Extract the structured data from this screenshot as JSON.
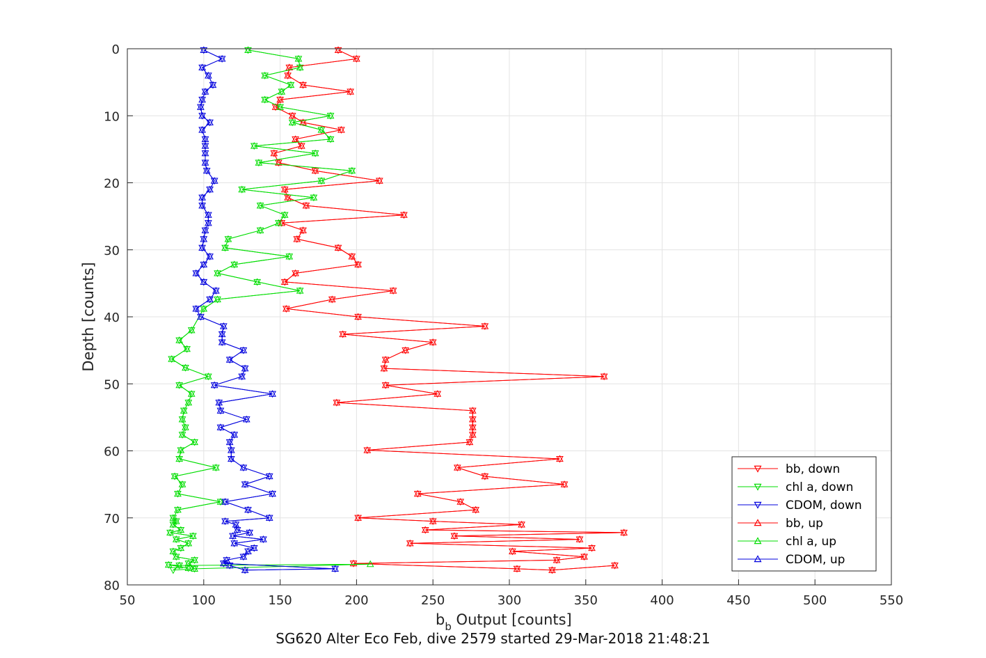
{
  "chart_data": {
    "type": "scatter",
    "xlabel": {
      "base": "b",
      "subscript": "b",
      "rest": " Output [counts]"
    },
    "ylabel": "Depth [counts]",
    "footer": "SG620 Alter Eco Feb, dive 2579 started 29-Mar-2018 21:48:21",
    "xlim": [
      50,
      550
    ],
    "ylim": [
      0,
      80
    ],
    "y_reversed": true,
    "grid": true,
    "xticks": [
      50,
      100,
      150,
      200,
      250,
      300,
      350,
      400,
      450,
      500,
      550
    ],
    "yticks": [
      0,
      10,
      20,
      30,
      40,
      50,
      60,
      70,
      80
    ],
    "legend_position": "lower-right",
    "series": [
      {
        "name": "bb, down",
        "color": "#ff0000",
        "marker": "triangle-down",
        "x": [
          188,
          200,
          156,
          155,
          165,
          196,
          150,
          147,
          158,
          165,
          190,
          160,
          164,
          146,
          149,
          173,
          215,
          153,
          155,
          167,
          231,
          151,
          165,
          161,
          188,
          197,
          201,
          160,
          153,
          224,
          184,
          154,
          201,
          284,
          191,
          250,
          232,
          219,
          218,
          362,
          219,
          253,
          187,
          276,
          276,
          276,
          276,
          274,
          207,
          333,
          266,
          284,
          336,
          240,
          268,
          278,
          201,
          250,
          308,
          245,
          375,
          264,
          346,
          235,
          354,
          302,
          349,
          331,
          198,
          305,
          328,
          369
        ],
        "y": [
          0.2,
          1.5,
          2.8,
          4.0,
          5.4,
          6.4,
          7.6,
          8.7,
          10.0,
          11.0,
          12.1,
          13.5,
          14.5,
          15.6,
          17.0,
          18.2,
          19.7,
          21.0,
          22.2,
          23.4,
          24.8,
          26.0,
          27.1,
          28.4,
          29.7,
          31.0,
          32.2,
          33.5,
          34.8,
          36.1,
          37.4,
          38.8,
          40.0,
          41.4,
          42.6,
          43.8,
          45.0,
          46.4,
          47.7,
          48.9,
          50.2,
          51.5,
          52.8,
          54.0,
          55.3,
          56.5,
          57.6,
          58.7,
          59.9,
          61.2,
          62.5,
          63.8,
          65.0,
          66.4,
          67.6,
          68.8,
          70.0,
          70.5,
          71.0,
          71.8,
          72.2,
          72.7,
          73.2,
          73.8,
          74.5,
          75.0,
          75.8,
          76.3,
          76.8,
          77.6,
          77.8,
          77.1
        ]
      },
      {
        "name": "chl a, down",
        "color": "#00dd00",
        "marker": "triangle-down",
        "x": [
          129,
          162,
          163,
          140,
          157,
          151,
          140,
          150,
          183,
          158,
          177,
          183,
          133,
          173,
          136,
          197,
          177,
          125,
          172,
          137,
          153,
          149,
          137,
          116,
          114,
          156,
          120,
          109,
          135,
          163,
          109,
          100,
          92,
          84,
          89,
          79,
          88,
          103,
          84,
          92,
          90,
          87,
          86,
          88,
          86,
          94,
          85,
          84,
          108,
          81,
          86,
          83,
          111,
          83,
          80,
          82,
          80,
          85,
          78,
          93,
          82,
          90,
          85,
          80,
          82,
          94,
          90,
          94,
          80,
          84,
          77,
          90
        ],
        "y": [
          0.2,
          1.5,
          2.8,
          4.0,
          5.4,
          6.4,
          7.6,
          8.7,
          10.0,
          11.0,
          12.1,
          13.5,
          14.5,
          15.6,
          17.0,
          18.2,
          19.7,
          21.0,
          22.2,
          23.4,
          24.8,
          26.0,
          27.1,
          28.4,
          29.7,
          31.0,
          32.2,
          33.5,
          34.8,
          36.1,
          37.4,
          38.8,
          42.0,
          43.5,
          44.8,
          46.3,
          47.6,
          48.9,
          50.2,
          51.5,
          52.8,
          54.0,
          55.3,
          56.5,
          57.6,
          58.7,
          59.9,
          61.2,
          62.5,
          63.8,
          65.0,
          66.4,
          67.6,
          68.8,
          70.0,
          70.5,
          71.0,
          71.8,
          72.2,
          72.7,
          73.2,
          73.8,
          74.5,
          75.0,
          75.8,
          76.3,
          76.8,
          77.6,
          77.8,
          77.1,
          77.0,
          77.5
        ]
      },
      {
        "name": "CDOM, down",
        "color": "#0000dd",
        "marker": "triangle-down",
        "x": [
          100,
          112,
          99,
          103,
          106,
          101,
          99,
          98,
          99,
          104,
          99,
          101,
          101,
          101,
          101,
          102,
          107,
          104,
          99,
          99,
          103,
          103,
          101,
          100,
          99,
          104,
          100,
          95,
          100,
          108,
          104,
          95,
          98,
          113,
          112,
          112,
          126,
          117,
          127,
          125,
          107,
          145,
          110,
          111,
          128,
          111,
          120,
          117,
          118,
          118,
          126,
          143,
          127,
          145,
          114,
          129,
          143,
          114,
          121,
          122,
          130,
          119,
          139,
          120,
          133,
          129,
          126,
          115,
          113,
          186,
          127,
          117
        ],
        "y": [
          0.2,
          1.5,
          2.8,
          4.0,
          5.4,
          6.4,
          7.6,
          8.7,
          10.0,
          11.0,
          12.1,
          13.5,
          14.5,
          15.6,
          17.0,
          18.2,
          19.7,
          21.0,
          22.2,
          23.4,
          24.8,
          26.0,
          27.1,
          28.4,
          29.7,
          31.0,
          32.2,
          33.5,
          34.8,
          36.1,
          37.4,
          38.8,
          40.0,
          41.4,
          42.6,
          43.8,
          45.0,
          46.4,
          47.7,
          48.9,
          50.2,
          51.5,
          52.8,
          54.0,
          55.3,
          56.5,
          57.6,
          58.7,
          59.9,
          61.2,
          62.5,
          63.8,
          65.0,
          66.4,
          67.6,
          68.8,
          70.0,
          70.5,
          71.0,
          71.8,
          72.2,
          72.7,
          73.2,
          73.8,
          74.5,
          75.0,
          75.8,
          76.3,
          76.8,
          77.6,
          77.8,
          77.1
        ]
      },
      {
        "name": "bb, up",
        "color": "#ff0000",
        "marker": "triangle-up",
        "x": [
          188,
          200,
          156,
          155,
          165,
          196,
          150,
          147,
          158,
          165,
          190,
          160,
          164,
          146,
          149,
          173,
          215,
          153,
          155,
          167,
          231,
          151,
          165,
          161,
          188,
          197,
          201,
          160,
          153,
          224,
          184,
          154,
          201,
          284,
          191,
          250,
          232,
          219,
          218,
          362,
          219,
          253,
          187,
          276,
          276,
          276,
          276,
          274,
          207,
          333,
          266,
          284,
          336,
          240,
          268,
          278,
          201,
          250,
          308,
          245,
          375,
          264,
          346,
          235,
          354,
          302,
          349,
          331,
          198,
          305,
          328,
          369
        ],
        "y": [
          0.2,
          1.5,
          2.8,
          4.0,
          5.4,
          6.4,
          7.6,
          8.7,
          10.0,
          11.0,
          12.1,
          13.5,
          14.5,
          15.6,
          17.0,
          18.2,
          19.7,
          21.0,
          22.2,
          23.4,
          24.8,
          26.0,
          27.1,
          28.4,
          29.7,
          31.0,
          32.2,
          33.5,
          34.8,
          36.1,
          37.4,
          38.8,
          40.0,
          41.4,
          42.6,
          43.8,
          45.0,
          46.4,
          47.7,
          48.9,
          50.2,
          51.5,
          52.8,
          54.0,
          55.3,
          56.5,
          57.6,
          58.7,
          59.9,
          61.2,
          62.5,
          63.8,
          65.0,
          66.4,
          67.6,
          68.8,
          70.0,
          70.5,
          71.0,
          71.8,
          72.2,
          72.7,
          73.2,
          73.8,
          74.5,
          75.0,
          75.8,
          76.3,
          76.8,
          77.6,
          77.8,
          77.1
        ]
      },
      {
        "name": "chl a, up",
        "color": "#00dd00",
        "marker": "triangle-up",
        "x": [
          129,
          162,
          163,
          140,
          157,
          151,
          140,
          150,
          183,
          158,
          177,
          183,
          133,
          173,
          136,
          197,
          177,
          125,
          172,
          137,
          153,
          149,
          137,
          116,
          114,
          156,
          120,
          109,
          135,
          163,
          109,
          100,
          92,
          84,
          89,
          79,
          88,
          103,
          84,
          92,
          90,
          87,
          86,
          88,
          86,
          94,
          85,
          84,
          108,
          81,
          86,
          83,
          111,
          83,
          80,
          82,
          80,
          85,
          78,
          93,
          82,
          90,
          85,
          80,
          82,
          94,
          90,
          94,
          209,
          84,
          77,
          90
        ],
        "y": [
          0.2,
          1.5,
          2.8,
          4.0,
          5.4,
          6.4,
          7.6,
          8.7,
          10.0,
          11.0,
          12.1,
          13.5,
          14.5,
          15.6,
          17.0,
          18.2,
          19.7,
          21.0,
          22.2,
          23.4,
          24.8,
          26.0,
          27.1,
          28.4,
          29.7,
          31.0,
          32.2,
          33.5,
          34.8,
          36.1,
          37.4,
          38.8,
          42.0,
          43.5,
          44.8,
          46.3,
          47.6,
          48.9,
          50.2,
          51.5,
          52.8,
          54.0,
          55.3,
          56.5,
          57.6,
          58.7,
          59.9,
          61.2,
          62.5,
          63.8,
          65.0,
          66.4,
          67.6,
          68.8,
          70.0,
          70.5,
          71.0,
          71.8,
          72.2,
          72.7,
          73.2,
          73.8,
          74.5,
          75.0,
          75.8,
          76.3,
          76.8,
          77.6,
          76.9,
          77.1,
          77.0,
          77.5
        ]
      },
      {
        "name": "CDOM, up",
        "color": "#0000dd",
        "marker": "triangle-up",
        "x": [
          100,
          112,
          99,
          103,
          106,
          101,
          99,
          98,
          99,
          104,
          99,
          101,
          101,
          101,
          101,
          102,
          107,
          104,
          99,
          99,
          103,
          103,
          101,
          100,
          99,
          104,
          100,
          95,
          100,
          108,
          104,
          95,
          98,
          113,
          112,
          112,
          126,
          117,
          127,
          125,
          107,
          145,
          110,
          111,
          128,
          111,
          120,
          117,
          118,
          118,
          126,
          143,
          127,
          145,
          114,
          129,
          143,
          114,
          121,
          122,
          130,
          119,
          139,
          120,
          133,
          129,
          126,
          115,
          113,
          186,
          127,
          117
        ],
        "y": [
          0.2,
          1.5,
          2.8,
          4.0,
          5.4,
          6.4,
          7.6,
          8.7,
          10.0,
          11.0,
          12.1,
          13.5,
          14.5,
          15.6,
          17.0,
          18.2,
          19.7,
          21.0,
          22.2,
          23.4,
          24.8,
          26.0,
          27.1,
          28.4,
          29.7,
          31.0,
          32.2,
          33.5,
          34.8,
          36.1,
          37.4,
          38.8,
          40.0,
          41.4,
          42.6,
          43.8,
          45.0,
          46.4,
          47.7,
          48.9,
          50.2,
          51.5,
          52.8,
          54.0,
          55.3,
          56.5,
          57.6,
          58.7,
          59.9,
          61.2,
          62.5,
          63.8,
          65.0,
          66.4,
          67.6,
          68.8,
          70.0,
          70.5,
          71.0,
          71.8,
          72.2,
          72.7,
          73.2,
          73.8,
          74.5,
          75.0,
          75.8,
          76.3,
          76.8,
          77.6,
          77.8,
          77.1
        ]
      }
    ]
  }
}
